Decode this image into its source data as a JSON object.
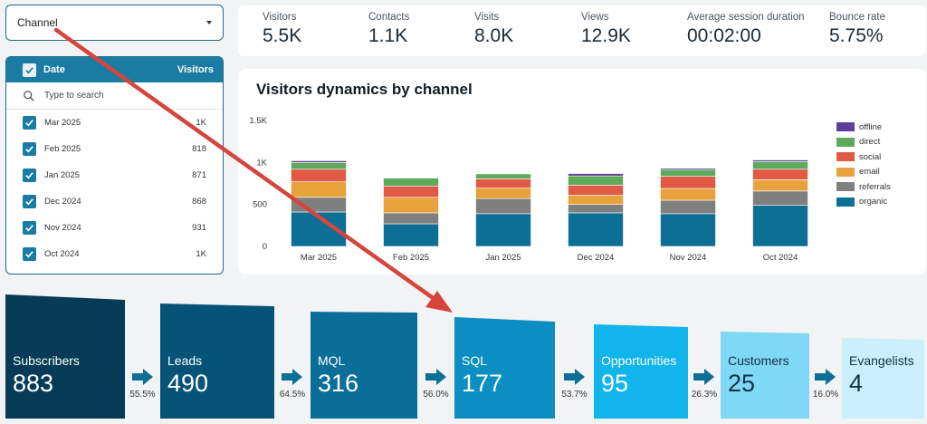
{
  "filters": {
    "channel_label": "Channel",
    "date_panel": {
      "header_label": "Date",
      "header_value_label": "Visitors",
      "search_placeholder": "Type to search",
      "rows": [
        {
          "label": "Mar 2025",
          "value": "1K"
        },
        {
          "label": "Feb 2025",
          "value": "818"
        },
        {
          "label": "Jan 2025",
          "value": "871"
        },
        {
          "label": "Dec 2024",
          "value": "868"
        },
        {
          "label": "Nov 2024",
          "value": "931"
        },
        {
          "label": "Oct 2024",
          "value": "1K"
        }
      ]
    }
  },
  "kpis": [
    {
      "label": "Visitors",
      "value": "5.5K"
    },
    {
      "label": "Contacts",
      "value": "1.1K"
    },
    {
      "label": "Visits",
      "value": "8.0K"
    },
    {
      "label": "Views",
      "value": "12.9K"
    },
    {
      "label": "Average session duration",
      "value": "00:02:00"
    },
    {
      "label": "Bounce rate",
      "value": "5.75%"
    }
  ],
  "chart_title": "Visitors dynamics by channel",
  "chart_data": {
    "type": "bar",
    "stacked": true,
    "categories": [
      "Mar 2025",
      "Feb 2025",
      "Jan 2025",
      "Dec 2024",
      "Nov 2024",
      "Oct 2024"
    ],
    "ylim": [
      0,
      1500
    ],
    "yticks": [
      0,
      500,
      1000,
      1500
    ],
    "ytick_labels": [
      "0",
      "500",
      "1K",
      "1.5K"
    ],
    "legend_position": "right",
    "series": [
      {
        "name": "organic",
        "color": "#0e6f96",
        "values": [
          410,
          270,
          390,
          400,
          390,
          490
        ]
      },
      {
        "name": "referrals",
        "color": "#7f7f7f",
        "values": [
          175,
          130,
          180,
          100,
          160,
          170
        ]
      },
      {
        "name": "email",
        "color": "#e9a23b",
        "values": [
          185,
          185,
          125,
          110,
          140,
          135
        ]
      },
      {
        "name": "social",
        "color": "#e05a45",
        "values": [
          150,
          135,
          110,
          120,
          145,
          125
        ]
      },
      {
        "name": "direct",
        "color": "#5daa5d",
        "values": [
          80,
          95,
          60,
          110,
          80,
          90
        ]
      },
      {
        "name": "offline",
        "color": "#5b3f9a",
        "values": [
          20,
          3,
          6,
          28,
          16,
          20
        ]
      }
    ],
    "legend_order": [
      "offline",
      "direct",
      "social",
      "email",
      "referrals",
      "organic"
    ]
  },
  "funnel": {
    "stages": [
      {
        "label": "Subscribers",
        "value": "883",
        "color": "#053b57",
        "text_color": "#ffffff"
      },
      {
        "label": "Leads",
        "value": "490",
        "color": "#065378",
        "text_color": "#ffffff"
      },
      {
        "label": "MQL",
        "value": "316",
        "color": "#0a6e99",
        "text_color": "#ffffff"
      },
      {
        "label": "SQL",
        "value": "177",
        "color": "#0b8fc2",
        "text_color": "#ffffff"
      },
      {
        "label": "Opportunities",
        "value": "95",
        "color": "#12b5eb",
        "text_color": "#ffffff"
      },
      {
        "label": "Customers",
        "value": "25",
        "color": "#7fd8f5",
        "text_color": "#12324a"
      },
      {
        "label": "Evangelists",
        "value": "4",
        "color": "#c9f0fc",
        "text_color": "#12324a"
      }
    ],
    "conversions": [
      "55.5%",
      "64.5%",
      "56.0%",
      "53.7%",
      "26.3%",
      "16.0%"
    ],
    "arrow_color": "#0e6f96"
  },
  "annotation": {
    "color": "#d6453c"
  }
}
